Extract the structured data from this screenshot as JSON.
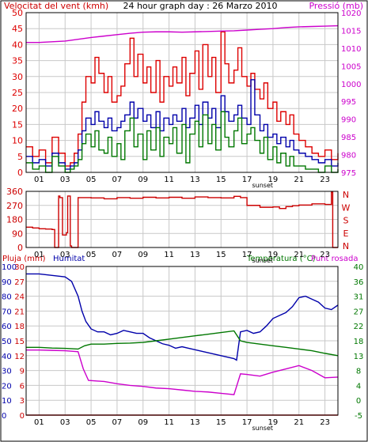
{
  "colors": {
    "wind": "#dd0000",
    "gust": "#dd0000",
    "avg": "#0000aa",
    "green": "#007700",
    "pressure": "#cc00cc",
    "direction": "#cc0000",
    "humidity": "#0000aa",
    "temperature": "#007700",
    "dewpoint": "#cc00cc",
    "rain": "#cc0000",
    "grid": "#c8c8c8",
    "frame": "#000000"
  },
  "chart_data": [
    {
      "type": "line",
      "title": "24 hour graph day : 26 Marzo 2010",
      "left_label": "Velocitat del vent (kmh)",
      "right_label": "Pressió (mb)",
      "x_ticks": [
        "01",
        "03",
        "05",
        "07",
        "09",
        "11",
        "13",
        "15",
        "17",
        "19",
        "21",
        "23"
      ],
      "x_extra_label": "sunset",
      "x_range": [
        0,
        24
      ],
      "ylim_left": [
        0,
        50
      ],
      "y_ticks_left": [
        "0",
        "5",
        "10",
        "15",
        "20",
        "25",
        "30",
        "35",
        "40",
        "45",
        "50"
      ],
      "ylim_right": [
        975,
        1020
      ],
      "y_ticks_right": [
        "975",
        "980",
        "985",
        "990",
        "995",
        "1000",
        "1005",
        "1010",
        "1015",
        "1020"
      ],
      "series": [
        {
          "axis": "left",
          "color_key": "gust",
          "x": [
            0,
            0.5,
            1,
            1.5,
            2,
            2.5,
            3,
            3.4,
            3.7,
            4,
            4.3,
            4.6,
            5,
            5.3,
            5.6,
            6,
            6.3,
            6.6,
            7,
            7.3,
            7.6,
            8,
            8.3,
            8.6,
            9,
            9.3,
            9.6,
            10,
            10.3,
            10.6,
            11,
            11.3,
            11.6,
            12,
            12.3,
            12.6,
            13,
            13.3,
            13.6,
            14,
            14.3,
            14.6,
            15,
            15.3,
            15.6,
            16,
            16.3,
            16.6,
            17,
            17.3,
            17.6,
            18,
            18.3,
            18.6,
            19,
            19.3,
            19.6,
            20,
            20.3,
            20.6,
            21,
            21.5,
            22,
            22.5,
            23,
            23.5,
            24
          ],
          "values": [
            8,
            5,
            7,
            3,
            11,
            6,
            2,
            3,
            6,
            12,
            22,
            30,
            28,
            36,
            31,
            25,
            30,
            22,
            24,
            27,
            34,
            42,
            30,
            37,
            28,
            33,
            25,
            35,
            22,
            30,
            27,
            33,
            28,
            36,
            24,
            31,
            38,
            26,
            40,
            30,
            36,
            25,
            44,
            34,
            28,
            32,
            39,
            30,
            27,
            31,
            26,
            23,
            28,
            20,
            22,
            16,
            19,
            15,
            18,
            12,
            10,
            8,
            6,
            5,
            7,
            4,
            6
          ]
        },
        {
          "axis": "left",
          "color_key": "avg",
          "x": [
            0,
            0.5,
            1,
            1.5,
            2,
            2.5,
            3,
            3.4,
            3.7,
            4,
            4.3,
            4.6,
            5,
            5.3,
            5.6,
            6,
            6.3,
            6.6,
            7,
            7.3,
            7.6,
            8,
            8.3,
            8.6,
            9,
            9.3,
            9.6,
            10,
            10.3,
            10.6,
            11,
            11.3,
            11.6,
            12,
            12.3,
            12.6,
            13,
            13.3,
            13.6,
            14,
            14.3,
            14.6,
            15,
            15.3,
            15.6,
            16,
            16.3,
            16.6,
            17,
            17.3,
            17.6,
            18,
            18.3,
            18.6,
            19,
            19.3,
            19.6,
            20,
            20.3,
            20.6,
            21,
            21.5,
            22,
            22.5,
            23,
            23.5,
            24
          ],
          "values": [
            5,
            3,
            4,
            2,
            6,
            3,
            1,
            2,
            3,
            7,
            13,
            17,
            15,
            19,
            16,
            14,
            17,
            13,
            14,
            16,
            18,
            22,
            17,
            20,
            16,
            18,
            14,
            19,
            13,
            17,
            15,
            18,
            16,
            20,
            14,
            17,
            21,
            15,
            22,
            17,
            20,
            14,
            24,
            19,
            16,
            18,
            21,
            17,
            15,
            29,
            18,
            13,
            15,
            11,
            12,
            9,
            11,
            8,
            10,
            7,
            6,
            5,
            4,
            3,
            4,
            2,
            3
          ]
        },
        {
          "axis": "left",
          "color_key": "green",
          "x": [
            0,
            0.5,
            1,
            1.5,
            2,
            2.5,
            3,
            3.4,
            3.7,
            4,
            4.3,
            4.6,
            5,
            5.3,
            5.6,
            6,
            6.3,
            6.6,
            7,
            7.3,
            7.6,
            8,
            8.3,
            8.6,
            9,
            9.3,
            9.6,
            10,
            10.3,
            10.6,
            11,
            11.3,
            11.6,
            12,
            12.3,
            12.6,
            13,
            13.3,
            13.6,
            14,
            14.3,
            14.6,
            15,
            15.3,
            15.6,
            16,
            16.3,
            16.6,
            17,
            17.3,
            17.6,
            18,
            18.3,
            18.6,
            19,
            19.3,
            19.6,
            20,
            20.3,
            20.6,
            21,
            21.5,
            22,
            22.5,
            23,
            23.5,
            24
          ],
          "values": [
            3,
            1,
            2,
            0,
            5,
            2,
            0,
            1,
            2,
            4,
            9,
            12,
            8,
            13,
            7,
            6,
            11,
            5,
            9,
            4,
            13,
            17,
            8,
            12,
            4,
            13,
            7,
            14,
            5,
            11,
            9,
            14,
            6,
            15,
            3,
            12,
            16,
            8,
            18,
            9,
            15,
            7,
            19,
            11,
            8,
            13,
            17,
            9,
            12,
            14,
            10,
            6,
            11,
            4,
            8,
            3,
            6,
            2,
            5,
            2,
            2,
            1,
            1,
            0,
            2,
            0,
            1
          ]
        },
        {
          "axis": "right",
          "color_key": "pressure",
          "x": [
            0,
            1,
            2,
            3,
            4,
            5,
            6,
            7,
            8,
            9,
            10,
            11,
            12,
            13,
            14,
            15,
            16,
            17,
            18,
            19,
            20,
            21,
            22,
            23,
            24
          ],
          "values": [
            1011.6,
            1011.6,
            1011.8,
            1012.0,
            1012.5,
            1013.0,
            1013.4,
            1013.8,
            1014.2,
            1014.5,
            1014.6,
            1014.6,
            1014.5,
            1014.6,
            1014.7,
            1014.8,
            1014.9,
            1015.1,
            1015.3,
            1015.5,
            1015.8,
            1016.0,
            1016.1,
            1016.2,
            1016.3
          ]
        }
      ]
    },
    {
      "type": "line",
      "left_label": "",
      "x_ticks": [
        "01",
        "03",
        "05",
        "07",
        "09",
        "11",
        "13",
        "15",
        "17",
        "19",
        "21",
        "23"
      ],
      "x_extra_label": "sunset",
      "x_range": [
        0,
        24
      ],
      "ylim_left": [
        0,
        360
      ],
      "y_ticks_left": [
        "0",
        "90",
        "180",
        "270",
        "360"
      ],
      "right_compass": [
        "N",
        "W",
        "S",
        "E",
        "N"
      ],
      "series": [
        {
          "color_key": "direction",
          "x": [
            0,
            0.5,
            1,
            1.5,
            2,
            2.2,
            2.3,
            2.5,
            2.6,
            2.8,
            3.1,
            3.2,
            3.4,
            3.5,
            4,
            5,
            6,
            7,
            8,
            9,
            10,
            11,
            12,
            13,
            14,
            15,
            16,
            16.5,
            17,
            18,
            19,
            19.5,
            20,
            20.5,
            21,
            22,
            23,
            23.5,
            23.6,
            24
          ],
          "values": [
            130,
            125,
            120,
            118,
            115,
            0,
            0,
            330,
            320,
            80,
            95,
            330,
            10,
            0,
            320,
            318,
            312,
            320,
            316,
            322,
            318,
            322,
            316,
            324,
            320,
            318,
            328,
            320,
            270,
            258,
            260,
            250,
            262,
            268,
            272,
            280,
            276,
            355,
            0,
            0
          ]
        }
      ]
    },
    {
      "type": "line",
      "left_labels": [
        "Pluja (mm)",
        "Humitat"
      ],
      "right_labels": [
        "Temperatura (°C)",
        "Punt rosada"
      ],
      "x_ticks": [
        "01",
        "03",
        "05",
        "07",
        "09",
        "11",
        "13",
        "15",
        "17",
        "19",
        "21",
        "23"
      ],
      "x_extra_label": "sunset",
      "x_range": [
        0,
        24
      ],
      "ylim_rain": [
        0,
        30
      ],
      "y_ticks_rain": [
        "0",
        "3",
        "6",
        "9",
        "12",
        "15",
        "18",
        "21",
        "24",
        "27",
        "30"
      ],
      "ylim_humidity": [
        0,
        100
      ],
      "y_ticks_humidity": [
        "0",
        "10",
        "20",
        "30",
        "40",
        "50",
        "60",
        "70",
        "80",
        "90",
        "100"
      ],
      "ylim_temp": [
        -5,
        40
      ],
      "y_ticks_temp": [
        "-5",
        "0",
        "4",
        "8",
        "13",
        "18",
        "22",
        "27",
        "31",
        "36",
        "40"
      ],
      "series": [
        {
          "name": "Humitat",
          "axis": "humidity",
          "color_key": "humidity",
          "x": [
            0,
            1,
            2,
            3,
            3.5,
            4,
            4.3,
            4.6,
            5,
            5.5,
            6,
            6.5,
            7,
            7.5,
            8,
            8.5,
            9,
            9.5,
            10,
            10.5,
            11,
            11.5,
            12,
            12.5,
            13,
            13.5,
            14,
            14.5,
            15,
            15.5,
            16,
            16.2,
            16.5,
            17,
            17.5,
            18,
            18.5,
            19,
            19.5,
            20,
            20.5,
            21,
            21.5,
            22,
            22.5,
            23,
            23.5,
            24
          ],
          "values": [
            95,
            95,
            94,
            93,
            90,
            80,
            70,
            63,
            58,
            56,
            56,
            54,
            55,
            57,
            56,
            55,
            55,
            52,
            50,
            48,
            47,
            45,
            46,
            45,
            44,
            43,
            42,
            41,
            40,
            39,
            38,
            37,
            56,
            57,
            55,
            56,
            60,
            65,
            67,
            69,
            73,
            79,
            80,
            78,
            76,
            72,
            71,
            74
          ]
        },
        {
          "name": "Temperatura (°C)",
          "axis": "temp",
          "color_key": "temperature",
          "x": [
            0,
            1,
            2,
            3,
            4,
            4.5,
            5,
            6,
            7,
            8,
            9,
            10,
            11,
            12,
            13,
            14,
            15,
            16,
            16.5,
            17,
            18,
            19,
            20,
            21,
            22,
            23,
            24
          ],
          "values": [
            15.5,
            15.5,
            15.3,
            15.2,
            15.0,
            16.0,
            16.5,
            16.5,
            16.7,
            16.8,
            17.0,
            17.5,
            18.0,
            18.5,
            19.0,
            19.5,
            20.0,
            20.5,
            17.5,
            17.0,
            16.5,
            16.0,
            15.5,
            15.0,
            14.5,
            13.7,
            13.0
          ]
        },
        {
          "name": "Punt rosada",
          "axis": "temp",
          "color_key": "dewpoint",
          "x": [
            0,
            1,
            2,
            3,
            4,
            4.4,
            4.8,
            5.5,
            6,
            7,
            8,
            9,
            10,
            11,
            12,
            13,
            14,
            15,
            16,
            16.5,
            17,
            18,
            19,
            20,
            21,
            22,
            23,
            24
          ],
          "values": [
            14.7,
            14.7,
            14.6,
            14.5,
            14.2,
            9.0,
            5.5,
            5.3,
            5.2,
            4.5,
            4.0,
            3.7,
            3.2,
            3.0,
            2.6,
            2.2,
            2.0,
            1.6,
            1.2,
            7.5,
            7.3,
            6.8,
            8.0,
            9.0,
            10.0,
            8.5,
            6.3,
            6.5
          ]
        },
        {
          "name": "Pluja (mm)",
          "axis": "rain",
          "color_key": "rain",
          "x": [
            0,
            24
          ],
          "values": [
            0,
            0
          ]
        }
      ]
    }
  ]
}
